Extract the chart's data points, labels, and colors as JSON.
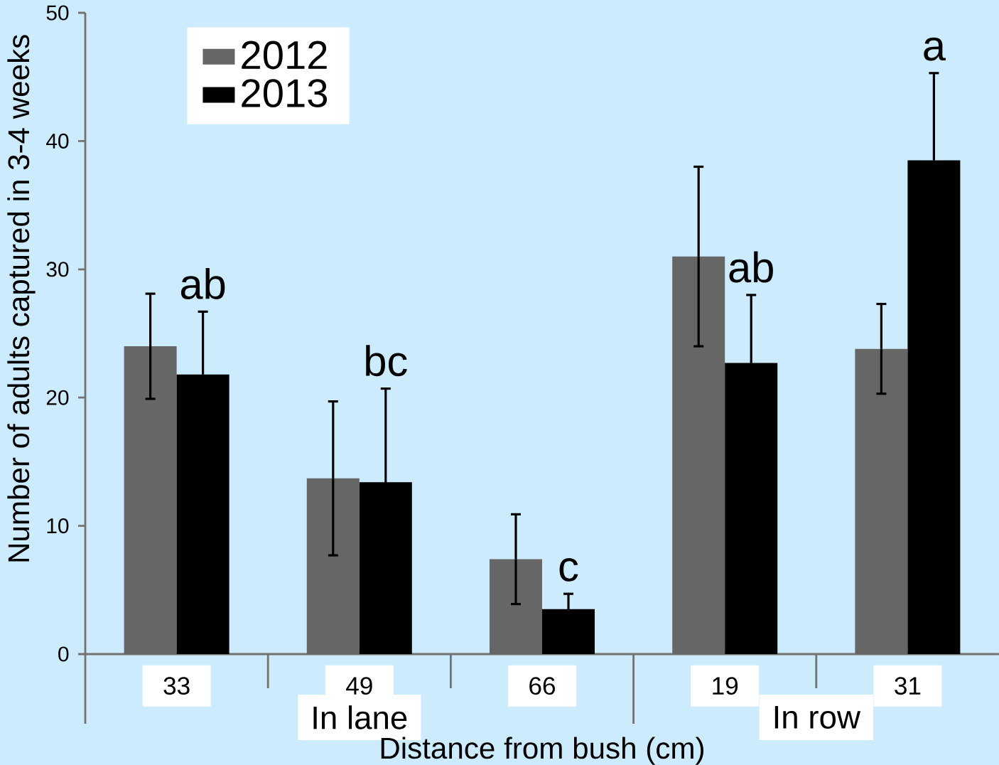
{
  "chart_data": {
    "type": "bar",
    "xlabel": "Distance from bush (cm)",
    "ylabel": "Number of adults captured in 3-4 weeks",
    "categories": [
      "33",
      "49",
      "66",
      "19",
      "31"
    ],
    "series": [
      {
        "name": "2012",
        "color": "#666666",
        "values": [
          24,
          13.7,
          7.4,
          31,
          23.8
        ],
        "errors": [
          4.1,
          6,
          3.5,
          7,
          3.5
        ]
      },
      {
        "name": "2013",
        "color": "#000000",
        "values": [
          21.8,
          13.4,
          3.5,
          22.7,
          38.5
        ],
        "errors": [
          4.9,
          7.3,
          1.2,
          5.3,
          6.8
        ]
      }
    ],
    "ylim": [
      0,
      50
    ],
    "yticks": [
      0,
      10,
      20,
      30,
      40,
      50
    ],
    "legend": "top left",
    "annotations": [
      "ab",
      "bc",
      "c",
      "ab",
      "a",
      "In lane",
      "In row"
    ]
  }
}
